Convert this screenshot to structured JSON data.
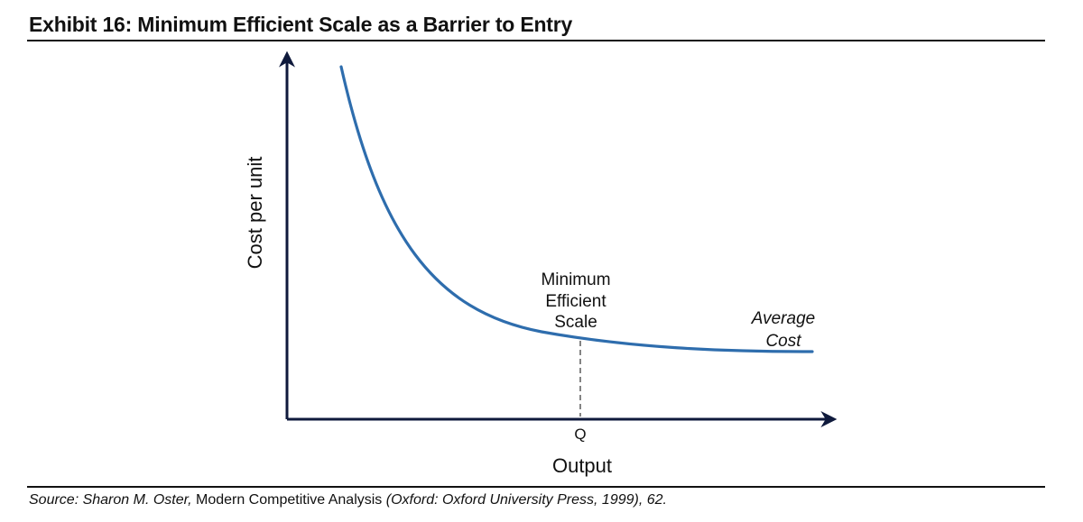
{
  "title": "Exhibit 16: Minimum Efficient Scale as a Barrier to Entry",
  "axes": {
    "y_label": "Cost per unit",
    "x_label": "Output",
    "x_tick": "Q"
  },
  "curve": {
    "name_line1": "Average",
    "name_line2": "Cost",
    "color": "#2E6DAD"
  },
  "annotation": {
    "line1": "Minimum",
    "line2": "Efficient",
    "line3": "Scale"
  },
  "axis_color": "#0F1A3C",
  "source": {
    "prefix": "Source: Sharon M. Oster,",
    "book": "Modern Competitive Analysis",
    "suffix": "(Oxford: Oxford University Press, 1999), 62."
  }
}
